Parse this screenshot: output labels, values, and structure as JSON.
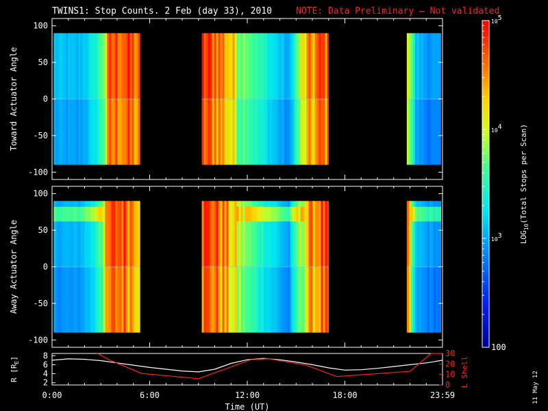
{
  "header": {
    "title": "TWINS1: Stop Counts.  2 Feb (day  33), 2010",
    "note": "NOTE: Data Preliminary – Not validated",
    "note_color": "#ff2020"
  },
  "side_label": "11 May 12",
  "chart_data": [
    {
      "type": "heatmap",
      "panel": "toward",
      "ylabel": "Toward Actuator Angle",
      "ylim": [
        -110,
        110
      ],
      "yticks": [
        100,
        50,
        0,
        -50,
        -100
      ],
      "data_range": [
        -90,
        90
      ],
      "xlim": [
        0,
        24
      ],
      "segments": [
        [
          0.1,
          5.4
        ],
        [
          9.2,
          17.0
        ],
        [
          21.8,
          23.9
        ]
      ],
      "intensity_profile": [
        [
          0.1,
          0.35
        ],
        [
          1.5,
          0.33
        ],
        [
          2.5,
          0.42
        ],
        [
          3.0,
          0.55
        ],
        [
          3.5,
          0.85
        ],
        [
          4.2,
          0.9
        ],
        [
          5.0,
          0.85
        ],
        [
          5.4,
          0.8
        ],
        [
          9.2,
          0.9
        ],
        [
          10.0,
          0.88
        ],
        [
          10.6,
          0.8
        ],
        [
          11.5,
          0.62
        ],
        [
          12.5,
          0.5
        ],
        [
          13.5,
          0.4
        ],
        [
          14.5,
          0.3
        ],
        [
          15.0,
          0.55
        ],
        [
          15.6,
          0.75
        ],
        [
          16.5,
          0.88
        ],
        [
          17.0,
          0.85
        ],
        [
          21.8,
          0.75
        ],
        [
          22.3,
          0.35
        ],
        [
          23.0,
          0.3
        ],
        [
          23.9,
          0.28
        ]
      ]
    },
    {
      "type": "heatmap",
      "panel": "away",
      "ylabel": "Away Actuator Angle",
      "ylim": [
        -110,
        110
      ],
      "yticks": [
        100,
        50,
        0,
        -50,
        -100
      ],
      "data_range": [
        -90,
        90
      ],
      "xlim": [
        0,
        24
      ],
      "segments": [
        [
          0.1,
          5.4
        ],
        [
          9.2,
          17.0
        ],
        [
          21.8,
          23.9
        ]
      ],
      "intensity_profile": [
        [
          0.1,
          0.33
        ],
        [
          1.5,
          0.32
        ],
        [
          2.5,
          0.42
        ],
        [
          3.0,
          0.6
        ],
        [
          3.5,
          0.85
        ],
        [
          4.2,
          0.9
        ],
        [
          5.0,
          0.85
        ],
        [
          5.4,
          0.8
        ],
        [
          9.2,
          0.9
        ],
        [
          10.0,
          0.88
        ],
        [
          10.6,
          0.8
        ],
        [
          11.5,
          0.62
        ],
        [
          12.5,
          0.5
        ],
        [
          13.5,
          0.4
        ],
        [
          14.5,
          0.3
        ],
        [
          15.0,
          0.55
        ],
        [
          15.6,
          0.75
        ],
        [
          16.5,
          0.88
        ],
        [
          17.0,
          0.85
        ],
        [
          21.8,
          0.75
        ],
        [
          22.3,
          0.35
        ],
        [
          23.0,
          0.3
        ],
        [
          23.9,
          0.28
        ]
      ]
    },
    {
      "type": "line",
      "panel": "orbit",
      "xlabel": "Time (UT)",
      "xlim": [
        0,
        24
      ],
      "xticks": [
        0,
        6,
        12,
        18,
        24
      ],
      "xtick_labels": [
        "0:00",
        "6:00",
        "12:00",
        "18:00",
        "23:59"
      ],
      "ylabel_left": "R [R",
      "ylabel_left_sub": "E",
      "ylabel_left_end": "]",
      "ylim_left": [
        1.5,
        8.5
      ],
      "yticks_left": [
        2,
        4,
        6,
        8
      ],
      "ylabel_right": "L Shell",
      "ylim_right": [
        0,
        30
      ],
      "yticks_right": [
        0,
        10,
        20,
        30
      ],
      "series": [
        {
          "axis": "left",
          "color": "#ffffff",
          "x": [
            0,
            1,
            2,
            3,
            4,
            5,
            6,
            7,
            8,
            9,
            10,
            11,
            12,
            13,
            14,
            15,
            16,
            17,
            18,
            19,
            20,
            21,
            22,
            23,
            24
          ],
          "y": [
            7.0,
            7.3,
            7.2,
            6.9,
            6.4,
            5.9,
            5.4,
            5.0,
            4.6,
            4.4,
            5.0,
            6.3,
            7.1,
            7.4,
            7.1,
            6.6,
            6.0,
            5.3,
            4.8,
            4.9,
            5.2,
            5.6,
            6.0,
            6.4,
            7.0
          ]
        },
        {
          "axis": "right",
          "color": "#ff2020",
          "x": [
            2.8,
            3.5,
            5.5,
            9.0,
            12.2,
            13.3,
            15.6,
            17.5,
            22.0,
            23.3,
            24.0
          ],
          "y": [
            30,
            24,
            11,
            6,
            24,
            25,
            19,
            8,
            13,
            30,
            30
          ]
        }
      ]
    },
    {
      "type": "colorbar",
      "label": "LOG",
      "label_sub": "10",
      "label_rest": "(Total Stops per Scan)",
      "scale": "log",
      "range": [
        100,
        100000
      ],
      "tick_labels": [
        {
          "base": "10",
          "exp": "5",
          "value": 100000
        },
        {
          "base": "10",
          "exp": "4",
          "value": 10000
        },
        {
          "base": "10",
          "exp": "3",
          "value": 1000
        },
        {
          "base": "100",
          "exp": "",
          "value": 100
        }
      ]
    }
  ]
}
